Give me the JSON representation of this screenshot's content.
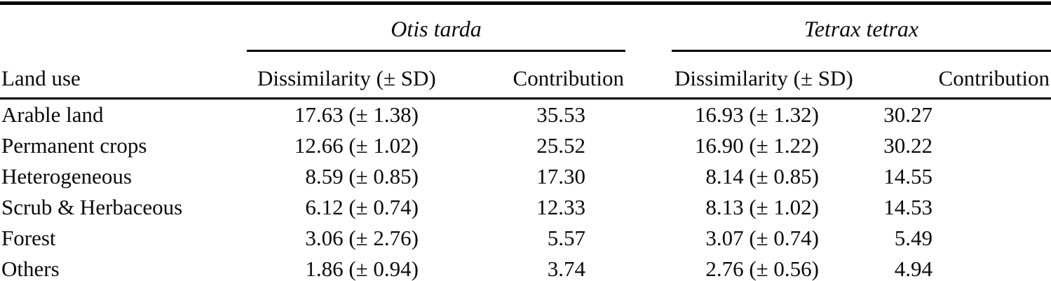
{
  "page": {
    "background_color": "#ffffff",
    "text_color": "#0a0a0a",
    "rule_color": "#000000"
  },
  "table": {
    "row_label_header": "Land use",
    "groups": [
      {
        "species": "Otis tarda",
        "columns": [
          "Dissimilarity (± SD)",
          "Contribution"
        ]
      },
      {
        "species": "Tetrax tetrax",
        "columns": [
          "Dissimilarity (± SD)",
          "Contribution"
        ]
      }
    ],
    "rows": [
      {
        "land_use": "Arable land",
        "otis_dissimilarity": "17.63 (± 1.38)",
        "otis_contribution": "35.53",
        "tetrax_dissimilarity": "16.93 (± 1.32)",
        "tetrax_contribution": "30.27"
      },
      {
        "land_use": "Permanent crops",
        "otis_dissimilarity": "12.66 (± 1.02)",
        "otis_contribution": "25.52",
        "tetrax_dissimilarity": "16.90 (± 1.22)",
        "tetrax_contribution": "30.22"
      },
      {
        "land_use": "Heterogeneous",
        "otis_dissimilarity": "8.59 (± 0.85)",
        "otis_contribution": "17.30",
        "tetrax_dissimilarity": "8.14 (± 0.85)",
        "tetrax_contribution": "14.55"
      },
      {
        "land_use": "Scrub & Herbaceous",
        "otis_dissimilarity": "6.12 (± 0.74)",
        "otis_contribution": "12.33",
        "tetrax_dissimilarity": "8.13 (± 1.02)",
        "tetrax_contribution": "14.53"
      },
      {
        "land_use": "Forest",
        "otis_dissimilarity": "3.06 (± 2.76)",
        "otis_contribution": "5.57",
        "tetrax_dissimilarity": "3.07 (± 0.74)",
        "tetrax_contribution": "5.49"
      },
      {
        "land_use": "Others",
        "otis_dissimilarity": "1.86 (± 0.94)",
        "otis_contribution": "3.74",
        "tetrax_dissimilarity": "2.76 (± 0.56)",
        "tetrax_contribution": "4.94"
      }
    ]
  }
}
